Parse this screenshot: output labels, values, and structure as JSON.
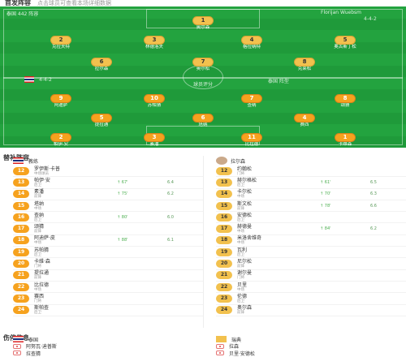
{
  "header": {
    "title": "首发阵容",
    "note": "点击球员可查看本场详细数据"
  },
  "pitch": {
    "home_team": "泰国 442 阵容",
    "away_team": "Florijan Wuebsm",
    "away_formation": "4-4-2",
    "center_label": "球员评分",
    "home_formation_left": "4-4-2",
    "home_formation_right": "泰国 阵型"
  },
  "lineup_home": [
    {
      "num": "1",
      "name": "卡维森",
      "rate": "6.9"
    },
    {
      "num": "2",
      "name": "帕伊·安",
      "rate": "6.5"
    },
    {
      "num": "3",
      "name": "素潘",
      "rate": "6.8"
    },
    {
      "num": "4",
      "name": "赛西",
      "rate": "6.6"
    },
    {
      "num": "5",
      "name": "提拉通",
      "rate": "7.1"
    },
    {
      "num": "6",
      "name": "塔纳",
      "rate": "7.2"
    },
    {
      "num": "7",
      "name": "查纳",
      "rate": "6.4"
    },
    {
      "num": "8",
      "name": "颂猜",
      "rate": "7.0"
    },
    {
      "num": "9",
      "name": "阿迪萨",
      "rate": "6.5"
    },
    {
      "num": "10",
      "name": "苏帕猜",
      "rate": "6.7"
    },
    {
      "num": "11",
      "name": "比拉德",
      "rate": "6.3"
    }
  ],
  "lineup_away": [
    {
      "num": "1",
      "name": "奥尔森",
      "rate": "6.8"
    },
    {
      "num": "2",
      "name": "克拉夫特",
      "rate": "6.6"
    },
    {
      "num": "3",
      "name": "林德洛夫",
      "rate": "7.0"
    },
    {
      "num": "4",
      "name": "格拉纳特",
      "rate": "6.9"
    },
    {
      "num": "5",
      "name": "奥古斯丁松",
      "rate": "6.7"
    },
    {
      "num": "6",
      "name": "拉尔森",
      "rate": "7.3"
    },
    {
      "num": "7",
      "name": "奥尔松",
      "rate": "6.5"
    },
    {
      "num": "8",
      "name": "克莱松",
      "rate": "6.6"
    },
    {
      "num": "9",
      "name": "福斯贝里",
      "rate": "7.1"
    },
    {
      "num": "10",
      "name": "伯格",
      "rate": "6.4"
    },
    {
      "num": "11",
      "name": "托伊沃宁",
      "rate": "6.8"
    }
  ],
  "subs": {
    "title": "替补阵容",
    "home_coach": "教练",
    "away_coach": "拉尔森",
    "home": [
      {
        "num": "12",
        "name": "罗伊斯·卡普",
        "pos": "中场球员",
        "event": "",
        "rate": ""
      },
      {
        "num": "13",
        "name": "帕伊·安",
        "pos": "后卫",
        "event": "↑ 67'",
        "rate": "6.4"
      },
      {
        "num": "14",
        "name": "素潘",
        "pos": "前锋",
        "event": "↑ 75'",
        "rate": "6.2"
      },
      {
        "num": "15",
        "name": "塔纳",
        "pos": "中场",
        "event": "",
        "rate": ""
      },
      {
        "num": "16",
        "name": "查纳",
        "pos": "后卫",
        "event": "↑ 80'",
        "rate": "6.0"
      },
      {
        "num": "17",
        "name": "颂猜",
        "pos": "前锋",
        "event": "",
        "rate": ""
      },
      {
        "num": "18",
        "name": "阿迪萨·皮",
        "pos": "中场",
        "event": "↑ 88'",
        "rate": "6.1"
      },
      {
        "num": "19",
        "name": "苏帕猜",
        "pos": "后卫",
        "event": "",
        "rate": ""
      },
      {
        "num": "20",
        "name": "卡维·森",
        "pos": "门将",
        "event": "",
        "rate": ""
      },
      {
        "num": "21",
        "name": "提拉通",
        "pos": "前锋",
        "event": "",
        "rate": ""
      },
      {
        "num": "22",
        "name": "比拉德",
        "pos": "中场",
        "event": "",
        "rate": ""
      },
      {
        "num": "23",
        "name": "赛西",
        "pos": "门将",
        "event": "",
        "rate": ""
      },
      {
        "num": "24",
        "name": "斯帕查",
        "pos": "后卫",
        "event": "",
        "rate": ""
      }
    ],
    "away": [
      {
        "num": "12",
        "name": "约翰松",
        "pos": "门将",
        "event": "",
        "rate": ""
      },
      {
        "num": "13",
        "name": "赫尔格松",
        "pos": "后卫",
        "event": "↑ 61'",
        "rate": "6.5"
      },
      {
        "num": "14",
        "name": "卡尔松",
        "pos": "中场",
        "event": "↑ 70'",
        "rate": "6.3"
      },
      {
        "num": "15",
        "name": "斯文松",
        "pos": "前锋",
        "event": "↑ 78'",
        "rate": "6.6"
      },
      {
        "num": "16",
        "name": "安德松",
        "pos": "后卫",
        "event": "",
        "rate": ""
      },
      {
        "num": "17",
        "name": "赫德曼",
        "pos": "中场",
        "event": "↑ 84'",
        "rate": "6.2"
      },
      {
        "num": "18",
        "name": "米洛舍维奇",
        "pos": "中场",
        "event": "",
        "rate": ""
      },
      {
        "num": "19",
        "name": "瓦利",
        "pos": "后卫",
        "event": "",
        "rate": ""
      },
      {
        "num": "20",
        "name": "尼尔松",
        "pos": "前锋",
        "event": "",
        "rate": ""
      },
      {
        "num": "21",
        "name": "谢尔曼",
        "pos": "门将",
        "event": "",
        "rate": ""
      },
      {
        "num": "22",
        "name": "贝里",
        "pos": "中场",
        "event": "",
        "rate": ""
      },
      {
        "num": "23",
        "name": "伦德",
        "pos": "后卫",
        "event": "",
        "rate": ""
      },
      {
        "num": "24",
        "name": "奥尔森",
        "pos": "前锋",
        "event": "",
        "rate": ""
      }
    ]
  },
  "injuries": {
    "title": "伤停信息",
    "home_label": "泰国",
    "away_label": "瑞典",
    "home": [
      "阿努瓦·迪普斯",
      "拉查猜",
      "塔纳拉"
    ],
    "away": [
      "拉森",
      "贝里·安德松",
      "赫尔曼"
    ]
  },
  "colors": {
    "pitch": "#1f9a3a",
    "home_disc": "#f6a21e",
    "away_disc": "#f2c14e",
    "sub_in": "#4caf50",
    "sub_out": "#e53935"
  }
}
